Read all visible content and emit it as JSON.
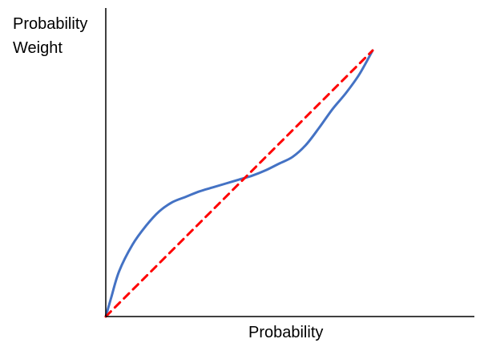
{
  "chart_data": {
    "type": "line",
    "title": "",
    "xlabel": "Probability",
    "ylabel": "Probability\nWeight",
    "xlim": [
      0,
      1
    ],
    "ylim": [
      0,
      1
    ],
    "grid": false,
    "series": [
      {
        "x": [
          0,
          0.02,
          0.05,
          0.1,
          0.15,
          0.2,
          0.25,
          0.3,
          0.35,
          0.4,
          0.45,
          0.5,
          0.55,
          0.6,
          0.65,
          0.7,
          0.75,
          0.8,
          0.85,
          0.9,
          0.95,
          1
        ],
        "y": [
          0,
          0.07,
          0.17,
          0.27,
          0.34,
          0.395,
          0.43,
          0.45,
          0.47,
          0.485,
          0.5,
          0.515,
          0.53,
          0.55,
          0.575,
          0.6,
          0.645,
          0.71,
          0.78,
          0.84,
          0.91,
          1
        ],
        "color": "#4472c4",
        "style": "solid"
      },
      {
        "x": [
          0,
          1
        ],
        "y": [
          0,
          1
        ],
        "color": "#ff0000",
        "style": "dashed"
      }
    ]
  }
}
